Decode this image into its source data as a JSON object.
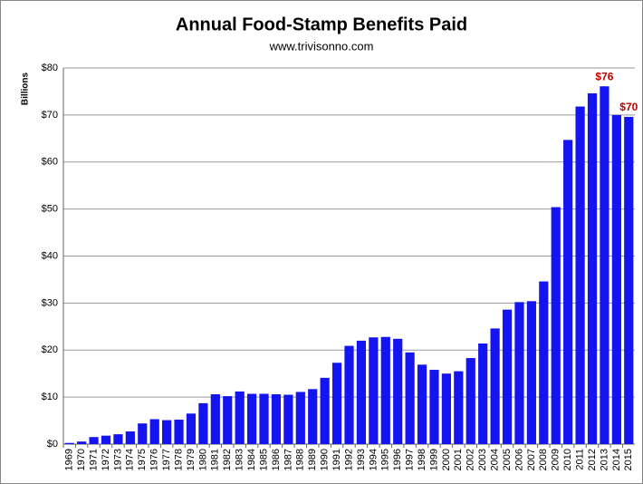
{
  "chart_data": {
    "type": "bar",
    "title": "Annual Food-Stamp Benefits Paid",
    "subtitle": "www.trivisonno.com",
    "y_axis_label": "Billions",
    "categories": [
      "1969",
      "1970",
      "1971",
      "1972",
      "1973",
      "1974",
      "1975",
      "1976",
      "1977",
      "1978",
      "1979",
      "1980",
      "1981",
      "1982",
      "1983",
      "1984",
      "1985",
      "1986",
      "1987",
      "1988",
      "1989",
      "1990",
      "1991",
      "1992",
      "1993",
      "1994",
      "1995",
      "1996",
      "1997",
      "1998",
      "1999",
      "2000",
      "2001",
      "2002",
      "2003",
      "2004",
      "2005",
      "2006",
      "2007",
      "2008",
      "2009",
      "2010",
      "2011",
      "2012",
      "2013",
      "2014",
      "2015"
    ],
    "values": [
      0.25,
      0.55,
      1.5,
      1.8,
      2.1,
      2.7,
      4.4,
      5.3,
      5.1,
      5.2,
      6.5,
      8.7,
      10.6,
      10.2,
      11.2,
      10.7,
      10.7,
      10.6,
      10.5,
      11.1,
      11.7,
      14.1,
      17.3,
      20.9,
      22.0,
      22.7,
      22.8,
      22.4,
      19.5,
      16.9,
      15.8,
      15.0,
      15.5,
      18.3,
      21.4,
      24.6,
      28.6,
      30.2,
      30.4,
      34.6,
      50.4,
      64.7,
      71.8,
      74.6,
      76.1,
      70.0,
      69.6
    ],
    "value_labels": [
      null,
      null,
      null,
      null,
      null,
      null,
      null,
      null,
      null,
      null,
      null,
      null,
      null,
      null,
      null,
      null,
      null,
      null,
      null,
      null,
      null,
      null,
      null,
      null,
      null,
      null,
      null,
      null,
      null,
      null,
      null,
      null,
      null,
      null,
      null,
      null,
      null,
      null,
      null,
      null,
      null,
      null,
      null,
      null,
      "$76",
      null,
      "$70"
    ],
    "color": "#1414f0",
    "label_color": "#c00000",
    "ylim": [
      0,
      80
    ],
    "yticks": [
      {
        "value": 0,
        "label": "$0"
      },
      {
        "value": 10,
        "label": "$10"
      },
      {
        "value": 20,
        "label": "$20"
      },
      {
        "value": 30,
        "label": "$30"
      },
      {
        "value": 40,
        "label": "$40"
      },
      {
        "value": 50,
        "label": "$50"
      },
      {
        "value": 60,
        "label": "$60"
      },
      {
        "value": 70,
        "label": "$70"
      },
      {
        "value": 80,
        "label": "$80"
      }
    ],
    "grid": true
  }
}
